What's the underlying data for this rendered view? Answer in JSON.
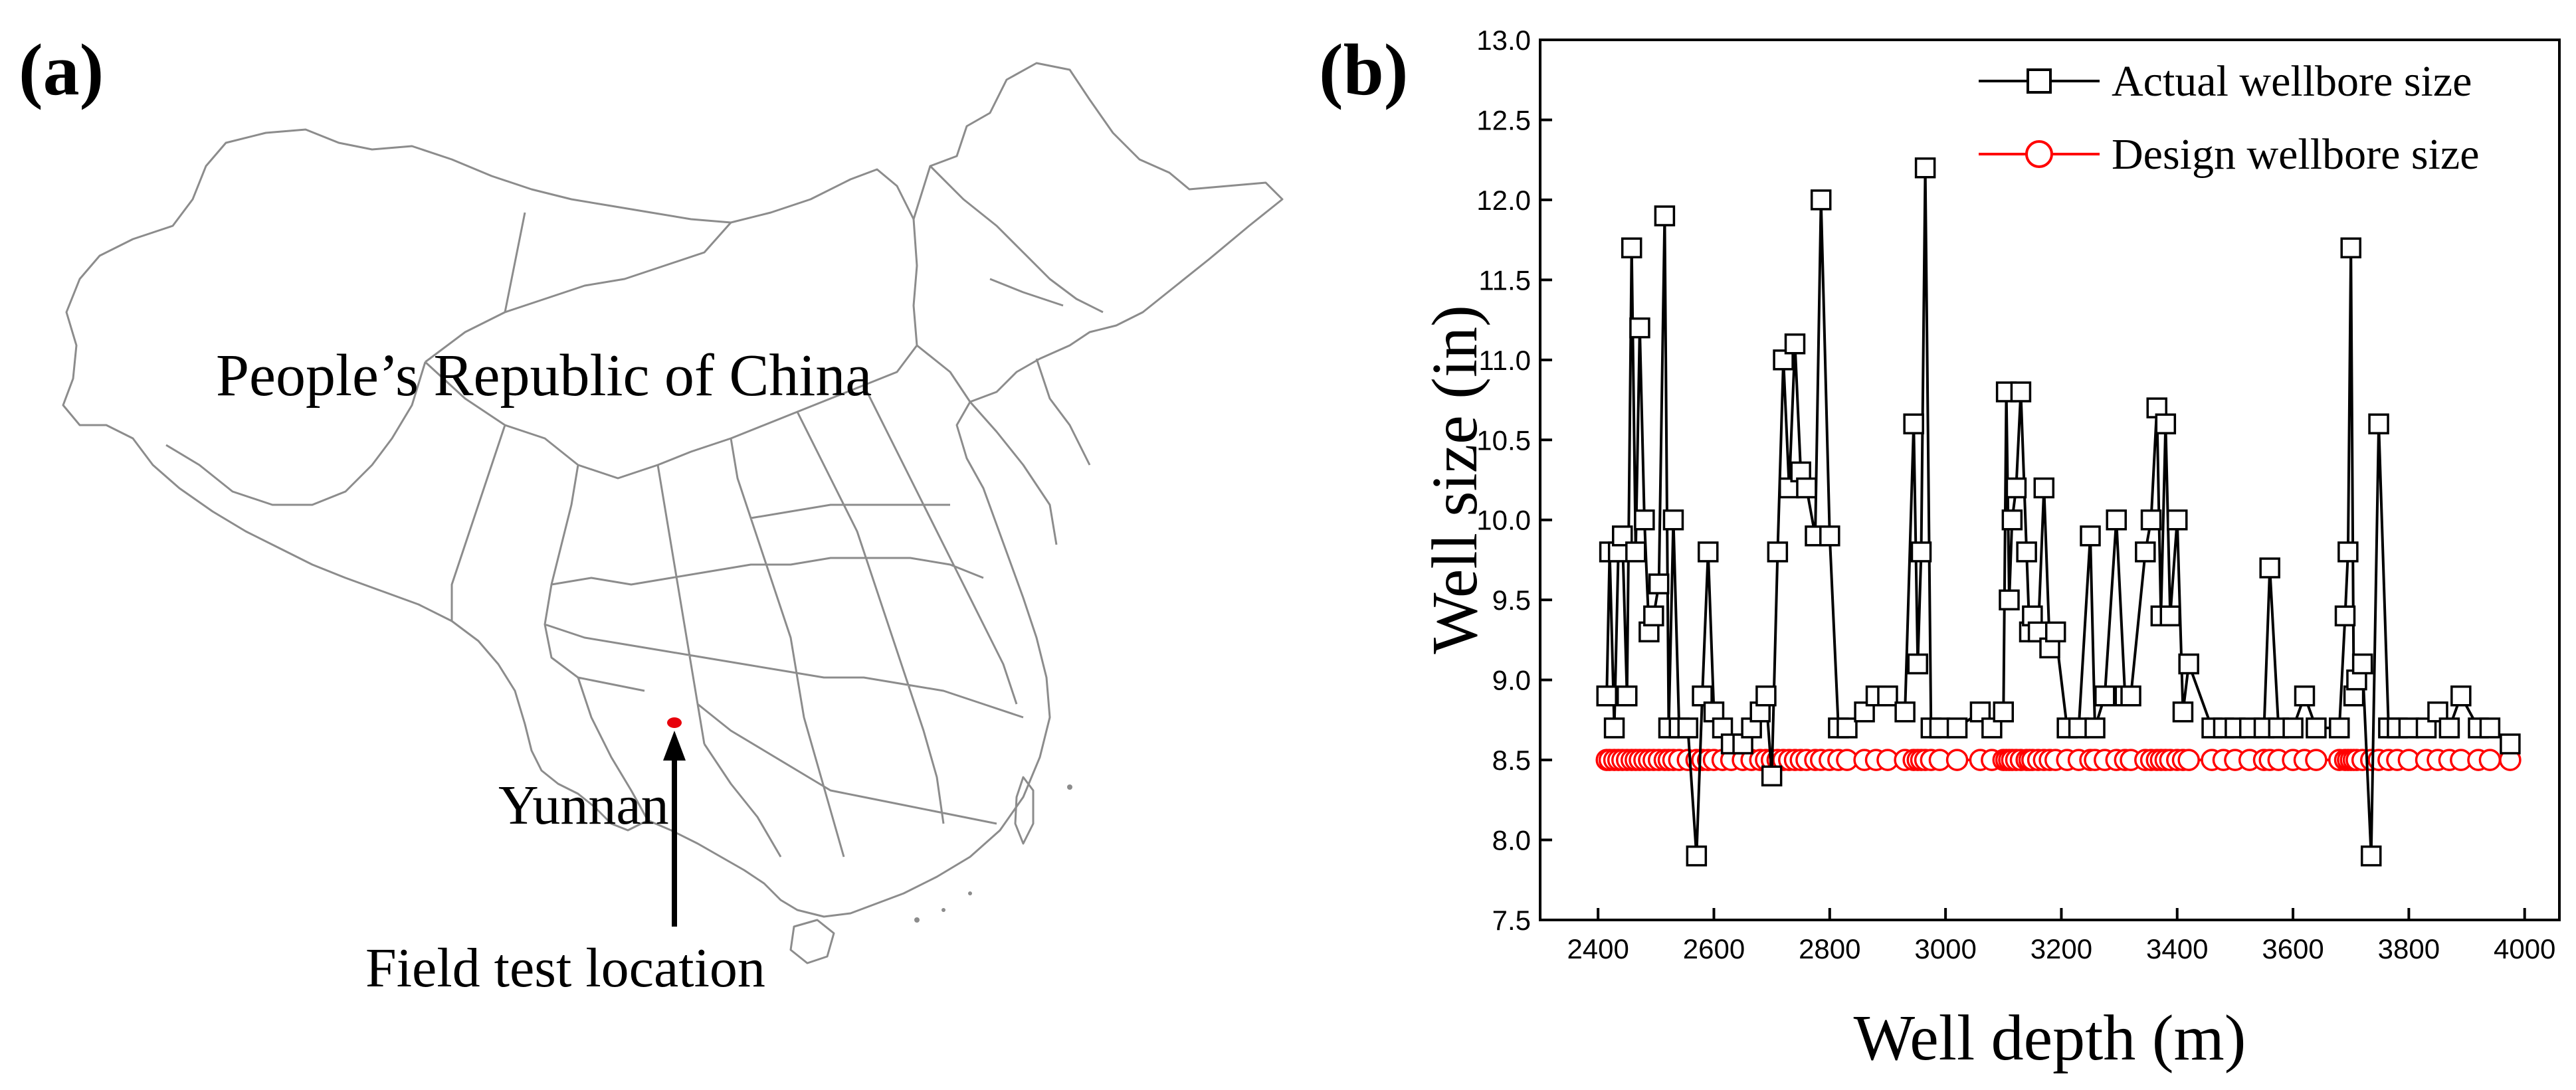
{
  "panel_a": {
    "label": "(a)",
    "country_label": "People’s Republic of China",
    "province_label": "Yunnan",
    "location_label": "Field test location",
    "marker_color": "#e8000b",
    "border_color": "#8c8c8c"
  },
  "panel_b": {
    "label": "(b)"
  },
  "chart_data": {
    "type": "line",
    "title": "",
    "xlabel": "Well depth (m)",
    "ylabel": "Well size (in)",
    "xlim": [
      2300,
      4060
    ],
    "ylim": [
      7.5,
      13.0
    ],
    "xticks": [
      2400,
      2600,
      2800,
      3000,
      3200,
      3400,
      3600,
      3800,
      4000
    ],
    "yticks": [
      7.5,
      8.0,
      8.5,
      9.0,
      9.5,
      10.0,
      10.5,
      11.0,
      11.5,
      12.0,
      12.5,
      13.0
    ],
    "xtick_labels": [
      "2400",
      "2600",
      "2800",
      "3000",
      "3200",
      "3400",
      "3600",
      "3800",
      "4000"
    ],
    "ytick_labels": [
      "7.5",
      "8.0",
      "8.5",
      "9.0",
      "9.5",
      "10.0",
      "10.5",
      "11.0",
      "11.5",
      "12.0",
      "12.5",
      "13.0"
    ],
    "legend_position": "top-right",
    "series": [
      {
        "name": "Actual wellbore size",
        "color": "#000000",
        "marker": "square",
        "x": [
          2415,
          2420,
          2428,
          2435,
          2442,
          2450,
          2458,
          2465,
          2472,
          2480,
          2488,
          2496,
          2505,
          2515,
          2522,
          2530,
          2540,
          2555,
          2570,
          2580,
          2590,
          2600,
          2615,
          2630,
          2650,
          2665,
          2680,
          2690,
          2700,
          2710,
          2720,
          2730,
          2740,
          2750,
          2760,
          2775,
          2785,
          2800,
          2815,
          2830,
          2860,
          2880,
          2900,
          2930,
          2945,
          2952,
          2958,
          2965,
          2975,
          2990,
          3020,
          3060,
          3080,
          3100,
          3105,
          3110,
          3115,
          3122,
          3130,
          3140,
          3145,
          3150,
          3160,
          3170,
          3180,
          3190,
          3210,
          3230,
          3250,
          3258,
          3275,
          3295,
          3310,
          3320,
          3345,
          3355,
          3365,
          3372,
          3380,
          3388,
          3400,
          3410,
          3420,
          3460,
          3480,
          3500,
          3525,
          3550,
          3560,
          3575,
          3600,
          3620,
          3640,
          3680,
          3690,
          3695,
          3700,
          3705,
          3710,
          3720,
          3735,
          3748,
          3765,
          3780,
          3800,
          3830,
          3850,
          3870,
          3890,
          3920,
          3940,
          3975
        ],
        "y": [
          8.9,
          9.8,
          8.7,
          9.8,
          9.9,
          8.9,
          11.7,
          9.8,
          11.2,
          10.0,
          9.3,
          9.4,
          9.6,
          11.9,
          8.7,
          10.0,
          8.7,
          8.7,
          7.9,
          8.9,
          9.8,
          8.8,
          8.7,
          8.6,
          8.6,
          8.7,
          8.8,
          8.9,
          8.4,
          9.8,
          11.0,
          10.2,
          11.1,
          10.3,
          10.2,
          9.9,
          12.0,
          9.9,
          8.7,
          8.7,
          8.8,
          8.9,
          8.9,
          8.8,
          10.6,
          9.1,
          9.8,
          12.2,
          8.7,
          8.7,
          8.7,
          8.8,
          8.7,
          8.8,
          10.8,
          9.5,
          10.0,
          10.2,
          10.8,
          9.8,
          9.3,
          9.4,
          9.3,
          10.2,
          9.2,
          9.3,
          8.7,
          8.7,
          9.9,
          8.7,
          8.9,
          10.0,
          8.9,
          8.9,
          9.8,
          10.0,
          10.7,
          9.4,
          10.6,
          9.4,
          10.0,
          8.8,
          9.1,
          8.7,
          8.7,
          8.7,
          8.7,
          8.7,
          9.7,
          8.7,
          8.7,
          8.9,
          8.7,
          8.7,
          9.4,
          9.8,
          11.7,
          8.9,
          9.0,
          9.1,
          7.9,
          10.6,
          8.7,
          8.7,
          8.7,
          8.7,
          8.8,
          8.7,
          8.9,
          8.7,
          8.7,
          8.6
        ]
      },
      {
        "name": "Design wellbore size",
        "color": "#ff0000",
        "marker": "circle",
        "x": [
          2415,
          2420,
          2428,
          2435,
          2442,
          2450,
          2458,
          2465,
          2472,
          2480,
          2488,
          2496,
          2505,
          2515,
          2522,
          2530,
          2540,
          2555,
          2570,
          2580,
          2590,
          2600,
          2615,
          2630,
          2650,
          2665,
          2680,
          2690,
          2700,
          2710,
          2720,
          2730,
          2740,
          2750,
          2760,
          2775,
          2785,
          2800,
          2815,
          2830,
          2860,
          2880,
          2900,
          2930,
          2945,
          2952,
          2958,
          2965,
          2975,
          2990,
          3020,
          3060,
          3080,
          3100,
          3105,
          3110,
          3115,
          3122,
          3130,
          3140,
          3145,
          3150,
          3160,
          3170,
          3180,
          3190,
          3210,
          3230,
          3250,
          3258,
          3275,
          3295,
          3310,
          3320,
          3345,
          3355,
          3365,
          3372,
          3380,
          3388,
          3400,
          3410,
          3420,
          3460,
          3480,
          3500,
          3525,
          3550,
          3560,
          3575,
          3600,
          3620,
          3640,
          3680,
          3690,
          3695,
          3700,
          3705,
          3710,
          3720,
          3735,
          3748,
          3765,
          3780,
          3800,
          3830,
          3850,
          3870,
          3890,
          3920,
          3940,
          3975
        ],
        "y": [
          8.5,
          8.5,
          8.5,
          8.5,
          8.5,
          8.5,
          8.5,
          8.5,
          8.5,
          8.5,
          8.5,
          8.5,
          8.5,
          8.5,
          8.5,
          8.5,
          8.5,
          8.5,
          8.5,
          8.5,
          8.5,
          8.5,
          8.5,
          8.5,
          8.5,
          8.5,
          8.5,
          8.5,
          8.5,
          8.5,
          8.5,
          8.5,
          8.5,
          8.5,
          8.5,
          8.5,
          8.5,
          8.5,
          8.5,
          8.5,
          8.5,
          8.5,
          8.5,
          8.5,
          8.5,
          8.5,
          8.5,
          8.5,
          8.5,
          8.5,
          8.5,
          8.5,
          8.5,
          8.5,
          8.5,
          8.5,
          8.5,
          8.5,
          8.5,
          8.5,
          8.5,
          8.5,
          8.5,
          8.5,
          8.5,
          8.5,
          8.5,
          8.5,
          8.5,
          8.5,
          8.5,
          8.5,
          8.5,
          8.5,
          8.5,
          8.5,
          8.5,
          8.5,
          8.5,
          8.5,
          8.5,
          8.5,
          8.5,
          8.5,
          8.5,
          8.5,
          8.5,
          8.5,
          8.5,
          8.5,
          8.5,
          8.5,
          8.5,
          8.5,
          8.5,
          8.5,
          8.5,
          8.5,
          8.5,
          8.5,
          8.5,
          8.5,
          8.5,
          8.5,
          8.5,
          8.5,
          8.5,
          8.5,
          8.5,
          8.5,
          8.5,
          8.5
        ]
      }
    ]
  }
}
